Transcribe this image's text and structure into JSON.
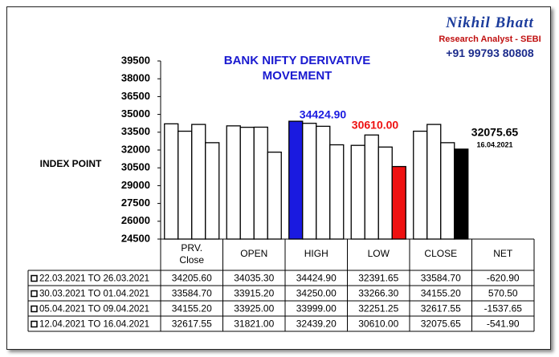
{
  "chart_data": {
    "type": "bar",
    "title": "BANK NIFTY DERIVATIVE MOVEMENT",
    "y_label": "INDEX POINT",
    "brand": {
      "name": "Nikhil Bhatt",
      "role": "Research Analyst - SEBI",
      "phone": "+91 99793 80808"
    },
    "categories": [
      "PRV. Close",
      "OPEN",
      "HIGH",
      "LOW",
      "CLOSE",
      "NET"
    ],
    "series": [
      {
        "name": "22.03.2021 TO 26.03.2021",
        "color": "#ffffff",
        "values": [
          34205.6,
          34035.3,
          34424.9,
          32391.65,
          33584.7,
          -620.9
        ],
        "value_labels": [
          "34205.60",
          "34035.30",
          "34424.90",
          "32391.65",
          "33584.70",
          "-620.90"
        ]
      },
      {
        "name": "30.03.2021 TO 01.04.2021",
        "color": "#ffffff",
        "values": [
          33584.7,
          33915.2,
          34250,
          33266.3,
          34155.2,
          570.5
        ],
        "value_labels": [
          "33584.70",
          "33915.20",
          "34250.00",
          "33266.30",
          "34155.20",
          "570.50"
        ]
      },
      {
        "name": "05.04.2021 TO 09.04.2021",
        "color": "#ffffff",
        "values": [
          34155.2,
          33925,
          33999,
          32251.25,
          32617.55,
          -1537.65
        ],
        "value_labels": [
          "34155.20",
          "33925.00",
          "33999.00",
          "32251.25",
          "32617.55",
          "-1537.65"
        ]
      },
      {
        "name": "12.04.2021 TO 16.04.2021",
        "color": "#ffffff",
        "values": [
          32617.55,
          31821,
          32439.2,
          30610,
          32075.65,
          -541.9
        ],
        "value_labels": [
          "32617.55",
          "31821.00",
          "32439.20",
          "30610.00",
          "32075.65",
          "-541.90"
        ]
      }
    ],
    "highlights": [
      {
        "series": 0,
        "category": 2,
        "color": "#1a1ae0"
      },
      {
        "series": 3,
        "category": 3,
        "color": "#ee1111"
      },
      {
        "series": 3,
        "category": 4,
        "color": "#000000"
      }
    ],
    "annotations": [
      {
        "text": "34424.90",
        "color": "#1a1ae0"
      },
      {
        "text": "30610.00",
        "color": "#ee1111"
      },
      {
        "text": "32075.65",
        "color": "#000000"
      },
      {
        "text": "16.04.2021",
        "color": "#000000"
      }
    ],
    "ylim": [
      24500,
      39500
    ],
    "yticks": [
      24500,
      26000,
      27500,
      29000,
      30500,
      32000,
      33500,
      35000,
      36500,
      38000,
      39500
    ],
    "grid": false
  }
}
